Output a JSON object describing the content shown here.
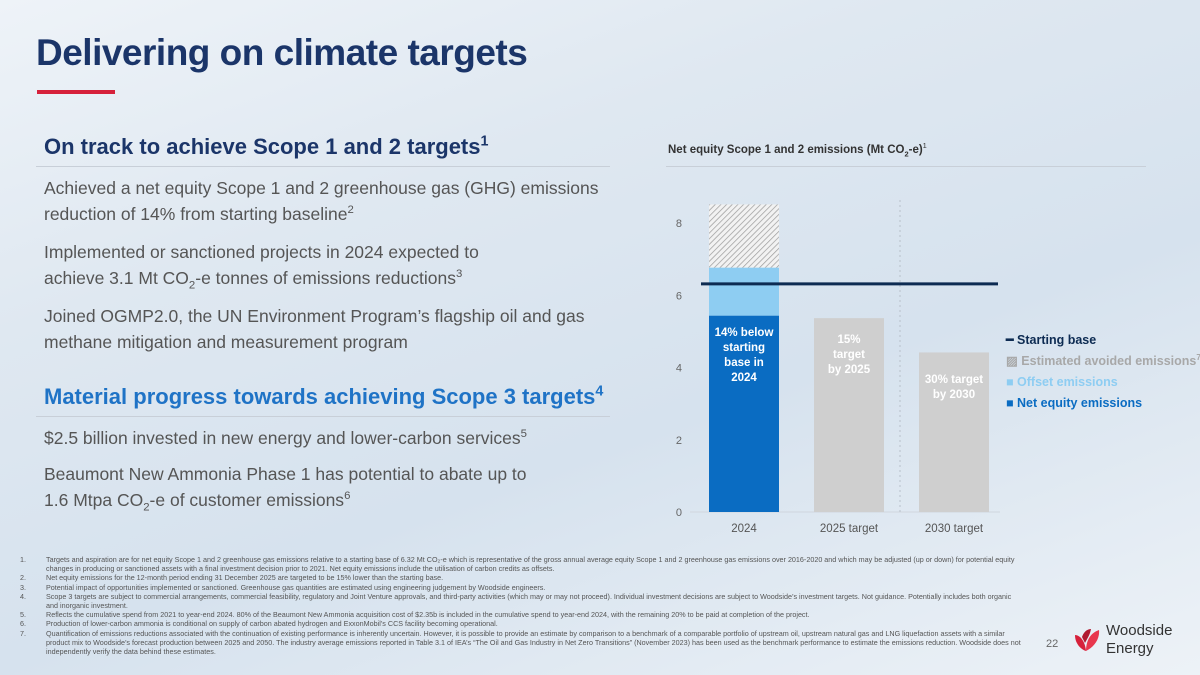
{
  "title": "Delivering on climate targets",
  "left": {
    "heading1": "On track to achieve Scope 1 and 2 targets",
    "heading1_sup": "1",
    "p1": "Achieved a net equity Scope 1 and 2 greenhouse gas (GHG) emissions reduction of 14% from starting baseline",
    "p1_sup": "2",
    "p2a": "Implemented or sanctioned projects in 2024 expected to achieve 3.1 Mt CO",
    "p2_sub": "2",
    "p2b": "-e tonnes of emissions reductions",
    "p2_sup": "3",
    "p3": "Joined OGMP2.0, the UN Environment Program’s flagship oil and gas methane mitigation and measurement program",
    "heading2": "Material progress towards achieving Scope 3 targets",
    "heading2_sup": "4",
    "p4": "$2.5 billion invested in new energy and lower-carbon services",
    "p4_sup": "5",
    "p5a": "Beaumont New Ammonia Phase 1 has potential to abate up to 1.6 Mtpa CO",
    "p5_sub": "2",
    "p5b": "-e of customer emissions",
    "p5_sup": "6"
  },
  "chart_data": {
    "type": "bar",
    "title": "Net equity Scope 1 and 2 emissions (Mt CO2-e)",
    "title_a": "Net equity Scope 1 and 2 emissions (Mt CO",
    "title_sub": "2",
    "title_b": "-e)",
    "title_sup": "1",
    "categories": [
      "2024",
      "2025 target",
      "2030 target"
    ],
    "ylim": [
      0,
      8.8
    ],
    "yticks": [
      "0",
      "2",
      "4",
      "6",
      "8"
    ],
    "series": [
      {
        "name": "Net equity emissions",
        "values": [
          5.44,
          null,
          null
        ],
        "color": "#0a6cc2"
      },
      {
        "name": "Offset emissions",
        "values": [
          1.33,
          null,
          null
        ],
        "color": "#8ecdf2"
      },
      {
        "name": "Estimated avoided emissions",
        "values": [
          1.75,
          null,
          null
        ],
        "color": "hatch"
      },
      {
        "name": "Target",
        "values": [
          null,
          5.37,
          4.42
        ],
        "color": "#cfcfcf"
      }
    ],
    "starting_base": 6.32,
    "bar_labels": [
      "14% below starting base in 2024",
      "15% target by 2025",
      "30% target by 2030"
    ],
    "legend": [
      {
        "label": "Starting base",
        "color": "#0d2b52"
      },
      {
        "label": "Estimated avoided emissions",
        "sup": "7",
        "color": "#a8a8a8"
      },
      {
        "label": "Offset emissions",
        "color": "#8ecdf2"
      },
      {
        "label": "Net equity emissions",
        "color": "#0a6cc2"
      }
    ]
  },
  "footnotes": [
    {
      "n": "1.",
      "text": "Targets and aspiration are for net equity Scope 1 and 2 greenhouse gas emissions relative to a starting base of 6.32 Mt CO₂-e which is representative of the gross annual average equity Scope 1 and 2 greenhouse gas emissions over 2016-2020 and which may be adjusted (up or down) for potential equity changes in producing or sanctioned assets with a final investment decision prior to 2021. Net equity emissions include the utilisation of carbon credits as offsets."
    },
    {
      "n": "2.",
      "text": "Net equity emissions for the 12-month period ending 31 December 2025 are targeted to be 15% lower than the starting base."
    },
    {
      "n": "3.",
      "text": "Potential impact of opportunities implemented or sanctioned. Greenhouse gas quantities are estimated using engineering judgement by Woodside engineers."
    },
    {
      "n": "4.",
      "text": "Scope 3 targets are subject to commercial arrangements, commercial feasibility, regulatory and Joint Venture approvals, and third-party activities (which may or may not proceed). Individual investment decisions are subject to Woodside’s investment targets. Not guidance. Potentially includes both organic and inorganic investment."
    },
    {
      "n": "5.",
      "text": "Reflects the cumulative spend from 2021 to year-end 2024. 80% of the Beaumont New Ammonia acquisition cost of $2.35b is included in the cumulative spend to year-end 2024, with the remaining 20% to be paid at completion of the project."
    },
    {
      "n": "6.",
      "text": "Production of lower-carbon ammonia is conditional on supply of carbon abated hydrogen and ExxonMobil’s CCS facility becoming operational."
    },
    {
      "n": "7.",
      "text": "Quantification of emissions reductions associated with the continuation of existing performance is inherently uncertain. However, it is possible to provide an estimate by comparison to a benchmark of a comparable portfolio of upstream oil, upstream natural gas and LNG liquefaction assets with a similar product mix to Woodside’s forecast production between 2025 and 2050. The industry average emissions reported in Table 3.1 of IEA’s “The Oil and Gas Industry in Net Zero Transitions” (November 2023) has been used as the benchmark performance to estimate the emissions reduction. Woodside does not independently verify the data behind these estimates."
    }
  ],
  "page_number": "22",
  "logo": {
    "line1": "Woodside",
    "line2": "Energy"
  }
}
